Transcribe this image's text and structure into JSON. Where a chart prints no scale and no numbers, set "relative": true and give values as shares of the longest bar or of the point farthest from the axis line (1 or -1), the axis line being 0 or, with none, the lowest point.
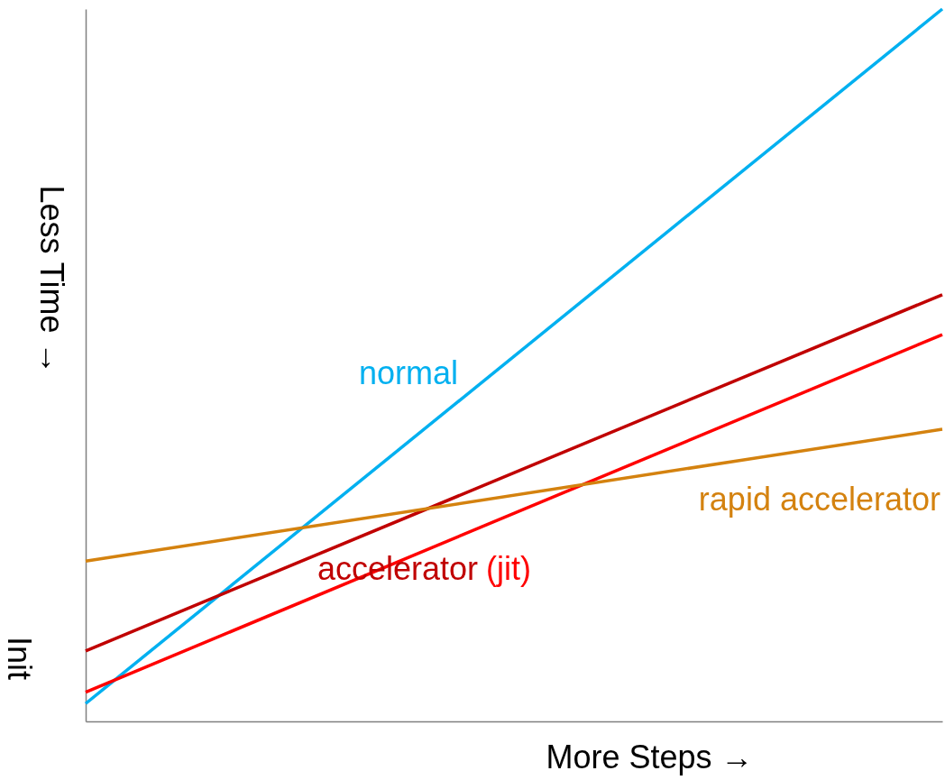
{
  "chart_data": {
    "type": "line",
    "relative": true,
    "categories": [
      null,
      null
    ],
    "xlabel": "More Steps →",
    "ylabel": "Less Time →",
    "annotations": [
      "Init"
    ],
    "series": [
      {
        "name": "normal",
        "color": "#00b0f0",
        "values": [
          0.025,
          1
        ]
      },
      {
        "name": "accelerator",
        "color": "#c00000",
        "values": [
          0.099,
          0.599
        ]
      },
      {
        "name": "(jit)",
        "color": "#ff0000",
        "values": [
          0.041,
          0.543
        ]
      },
      {
        "name": "rapid accelerator",
        "color": "#d4820f",
        "values": [
          0.225,
          0.41
        ]
      }
    ],
    "grid": false,
    "tick_labels": false,
    "marker": "none",
    "line_style": "solid"
  }
}
